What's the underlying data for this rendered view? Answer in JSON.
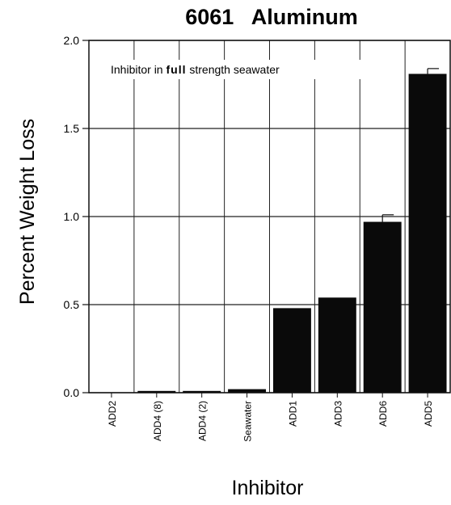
{
  "chart_data": {
    "type": "bar",
    "title": "6061   Aluminum",
    "xlabel": "Inhibitor",
    "ylabel": "Percent Weight Loss",
    "ylim": [
      0.0,
      2.0
    ],
    "yticks": [
      "0.0",
      "0.5",
      "1.0",
      "1.5",
      "2.0"
    ],
    "categories": [
      "ADD2",
      "ADD4  (8)",
      "ADD4  (2)",
      "Seawater",
      "ADD1",
      "ADD3",
      "ADD6",
      "ADD5"
    ],
    "values": [
      0.0,
      0.01,
      0.01,
      0.02,
      0.48,
      0.54,
      0.97,
      1.81
    ],
    "errors": [
      0,
      0,
      0,
      0,
      0,
      0,
      0.04,
      0.03
    ],
    "grid": true,
    "bar_color": "#0a0a0a",
    "annotation": {
      "prefix": "Inhibitor in ",
      "bold": "full",
      "suffix": " strength seawater"
    }
  }
}
